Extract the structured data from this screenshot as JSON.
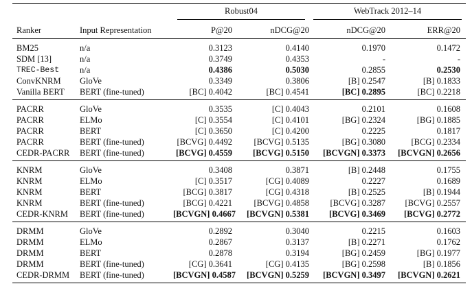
{
  "table": {
    "header": {
      "groups": [
        "Robust04",
        "WebTrack 2012–14"
      ],
      "columns": [
        "Ranker",
        "Input Representation",
        "P@20",
        "nDCG@20",
        "nDCG@20",
        "ERR@20"
      ]
    },
    "groups": [
      {
        "rows": [
          {
            "cells": [
              "BM25",
              "n/a",
              "0.3123",
              "0.4140",
              "0.1970",
              "0.1472"
            ],
            "bold": []
          },
          {
            "cells": [
              "SDM [13]",
              "n/a",
              "0.3749",
              "0.4353",
              "-",
              "-"
            ],
            "bold": []
          },
          {
            "cells": [
              "TREC-Best",
              "n/a",
              "0.4386",
              "0.5030",
              "0.2855",
              "0.2530"
            ],
            "bold": [
              2,
              3,
              5
            ]
          },
          {
            "cells": [
              "ConvKNRM",
              "GloVe",
              "0.3349",
              "0.3806",
              "[B] 0.2547",
              "[B] 0.1833"
            ],
            "bold": []
          },
          {
            "cells": [
              "Vanilla BERT",
              "BERT (fine-tuned)",
              "[BC] 0.4042",
              "[BC] 0.4541",
              "[BC] 0.2895",
              "[BC] 0.2218"
            ],
            "bold": [
              4
            ]
          }
        ]
      },
      {
        "rows": [
          {
            "cells": [
              "PACRR",
              "GloVe",
              "0.3535",
              "[C] 0.4043",
              "0.2101",
              "0.1608"
            ],
            "bold": []
          },
          {
            "cells": [
              "PACRR",
              "ELMo",
              "[C] 0.3554",
              "[C] 0.4101",
              "[BG] 0.2324",
              "[BG] 0.1885"
            ],
            "bold": []
          },
          {
            "cells": [
              "PACRR",
              "BERT",
              "[C] 0.3650",
              "[C] 0.4200",
              "0.2225",
              "0.1817"
            ],
            "bold": []
          },
          {
            "cells": [
              "PACRR",
              "BERT (fine-tuned)",
              "[BCVG] 0.4492",
              "[BCVG] 0.5135",
              "[BG] 0.3080",
              "[BCG] 0.2334"
            ],
            "bold": []
          },
          {
            "cells": [
              "CEDR-PACRR",
              "BERT (fine-tuned)",
              "[BCVG] 0.4559",
              "[BCVG] 0.5150",
              "[BCVGN] 0.3373",
              "[BCVGN] 0.2656"
            ],
            "bold": [
              2,
              3,
              4,
              5
            ]
          }
        ]
      },
      {
        "rows": [
          {
            "cells": [
              "KNRM",
              "GloVe",
              "0.3408",
              "0.3871",
              "[B] 0.2448",
              "0.1755"
            ],
            "bold": []
          },
          {
            "cells": [
              "KNRM",
              "ELMo",
              "[C] 0.3517",
              "[CG] 0.4089",
              "0.2227",
              "0.1689"
            ],
            "bold": []
          },
          {
            "cells": [
              "KNRM",
              "BERT",
              "[BCG] 0.3817",
              "[CG] 0.4318",
              "[B] 0.2525",
              "[B] 0.1944"
            ],
            "bold": []
          },
          {
            "cells": [
              "KNRM",
              "BERT (fine-tuned)",
              "[BCG] 0.4221",
              "[BCVG] 0.4858",
              "[BCVG] 0.3287",
              "[BCVG] 0.2557"
            ],
            "bold": []
          },
          {
            "cells": [
              "CEDR-KNRM",
              "BERT (fine-tuned)",
              "[BCVGN] 0.4667",
              "[BCVGN] 0.5381",
              "[BCVG] 0.3469",
              "[BCVG] 0.2772"
            ],
            "bold": [
              2,
              3,
              4,
              5
            ]
          }
        ]
      },
      {
        "rows": [
          {
            "cells": [
              "DRMM",
              "GloVe",
              "0.2892",
              "0.3040",
              "0.2215",
              "0.1603"
            ],
            "bold": []
          },
          {
            "cells": [
              "DRMM",
              "ELMo",
              "0.2867",
              "0.3137",
              "[B] 0.2271",
              "0.1762"
            ],
            "bold": []
          },
          {
            "cells": [
              "DRMM",
              "BERT",
              "0.2878",
              "0.3194",
              "[BG] 0.2459",
              "[BG] 0.1977"
            ],
            "bold": []
          },
          {
            "cells": [
              "DRMM",
              "BERT (fine-tuned)",
              "[CG] 0.3641",
              "[CG] 0.4135",
              "[BG] 0.2598",
              "[B] 0.1856"
            ],
            "bold": []
          },
          {
            "cells": [
              "CEDR-DRMM",
              "BERT (fine-tuned)",
              "[BCVGN] 0.4587",
              "[BCVGN] 0.5259",
              "[BCVGN] 0.3497",
              "[BCVGN] 0.2621"
            ],
            "bold": [
              2,
              3,
              4,
              5
            ]
          }
        ]
      }
    ]
  }
}
